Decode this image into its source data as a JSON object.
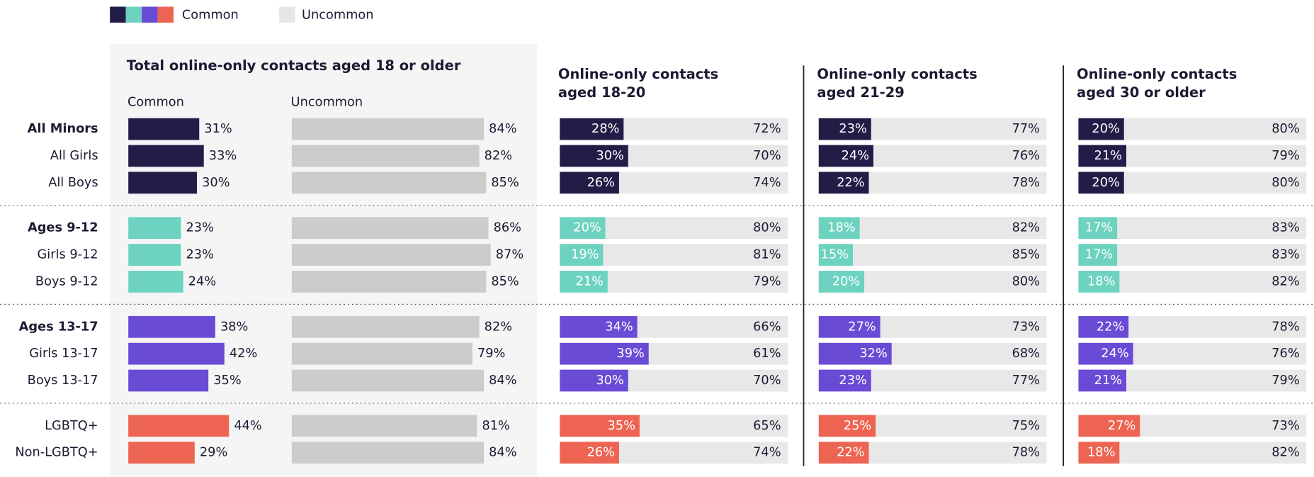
{
  "chart_data": {
    "type": "bar",
    "legend": [
      {
        "name": "Common"
      },
      {
        "name": "Uncommon",
        "color": "#e6e6e6"
      }
    ],
    "groups": [
      {
        "color": "#221d47",
        "headline": true,
        "categories": [
          "All Minors",
          "All Girls",
          "All Boys"
        ]
      },
      {
        "color": "#6dd3c0",
        "headline": true,
        "categories": [
          "Ages 9-12",
          "Girls 9-12",
          "Boys 9-12"
        ]
      },
      {
        "color": "#6a4bd6",
        "headline": true,
        "categories": [
          "Ages 13-17",
          "Girls 13-17",
          "Boys 13-17"
        ]
      },
      {
        "color": "#ee6452",
        "headline": false,
        "categories": [
          "LGBTQ+",
          "Non-LGBTQ+"
        ]
      }
    ],
    "panels": [
      {
        "title": [
          "Total online-only contacts aged 18 or older"
        ],
        "uncommon_color": "#cccccc",
        "separate_columns": true,
        "series": [
          {
            "name": "Common",
            "values": [
              31,
              33,
              30,
              23,
              23,
              24,
              38,
              42,
              35,
              44,
              29
            ],
            "value_labels": [
              "31%",
              "33%",
              "30%",
              "23%",
              "23%",
              "24%",
              "38%",
              "42%",
              "35%",
              "44%",
              "29%"
            ]
          },
          {
            "name": "Uncommon",
            "values": [
              84,
              82,
              85,
              86,
              87,
              85,
              82,
              79,
              84,
              81,
              84
            ],
            "value_labels": [
              "84%",
              "82%",
              "85%",
              "86%",
              "87%",
              "85%",
              "82%",
              "79%",
              "84%",
              "81%",
              "84%"
            ]
          }
        ]
      },
      {
        "title": [
          "Online-only contacts",
          "aged 18-20"
        ],
        "uncommon_color": "#e8e8e8",
        "separate_columns": false,
        "series": [
          {
            "name": "Common",
            "values": [
              28,
              30,
              26,
              20,
              19,
              21,
              34,
              39,
              30,
              35,
              26
            ],
            "value_labels": [
              "28%",
              "30%",
              "26%",
              "20%",
              "19%",
              "21%",
              "34%",
              "39%",
              "30%",
              "35%",
              "26%"
            ]
          },
          {
            "name": "Uncommon",
            "values": [
              72,
              70,
              74,
              80,
              81,
              79,
              66,
              61,
              70,
              65,
              74
            ],
            "value_labels": [
              "72%",
              "70%",
              "74%",
              "80%",
              "81%",
              "79%",
              "66%",
              "61%",
              "70%",
              "65%",
              "74%"
            ]
          }
        ]
      },
      {
        "title": [
          "Online-only contacts",
          "aged 21-29"
        ],
        "uncommon_color": "#e8e8e8",
        "separate_columns": false,
        "series": [
          {
            "name": "Common",
            "values": [
              23,
              24,
              22,
              18,
              15,
              20,
              27,
              32,
              23,
              25,
              22
            ],
            "value_labels": [
              "23%",
              "24%",
              "22%",
              "18%",
              "15%",
              "20%",
              "27%",
              "32%",
              "23%",
              "25%",
              "22%"
            ]
          },
          {
            "name": "Uncommon",
            "values": [
              77,
              76,
              78,
              82,
              85,
              80,
              73,
              68,
              77,
              75,
              78
            ],
            "value_labels": [
              "77%",
              "76%",
              "78%",
              "82%",
              "85%",
              "80%",
              "73%",
              "68%",
              "77%",
              "75%",
              "78%"
            ]
          }
        ]
      },
      {
        "title": [
          "Online-only contacts",
          "aged 30 or older"
        ],
        "uncommon_color": "#e8e8e8",
        "separate_columns": false,
        "series": [
          {
            "name": "Common",
            "values": [
              20,
              21,
              20,
              17,
              17,
              18,
              22,
              24,
              21,
              27,
              18
            ],
            "value_labels": [
              "20%",
              "21%",
              "20%",
              "17%",
              "17%",
              "18%",
              "22%",
              "24%",
              "21%",
              "27%",
              "18%"
            ]
          },
          {
            "name": "Uncommon",
            "values": [
              80,
              79,
              80,
              83,
              83,
              82,
              78,
              76,
              79,
              73,
              82
            ],
            "value_labels": [
              "80%",
              "79%",
              "80%",
              "83%",
              "83%",
              "82%",
              "78%",
              "76%",
              "79%",
              "73%",
              "82%"
            ]
          }
        ]
      }
    ],
    "xlim": [
      0,
      100
    ]
  }
}
